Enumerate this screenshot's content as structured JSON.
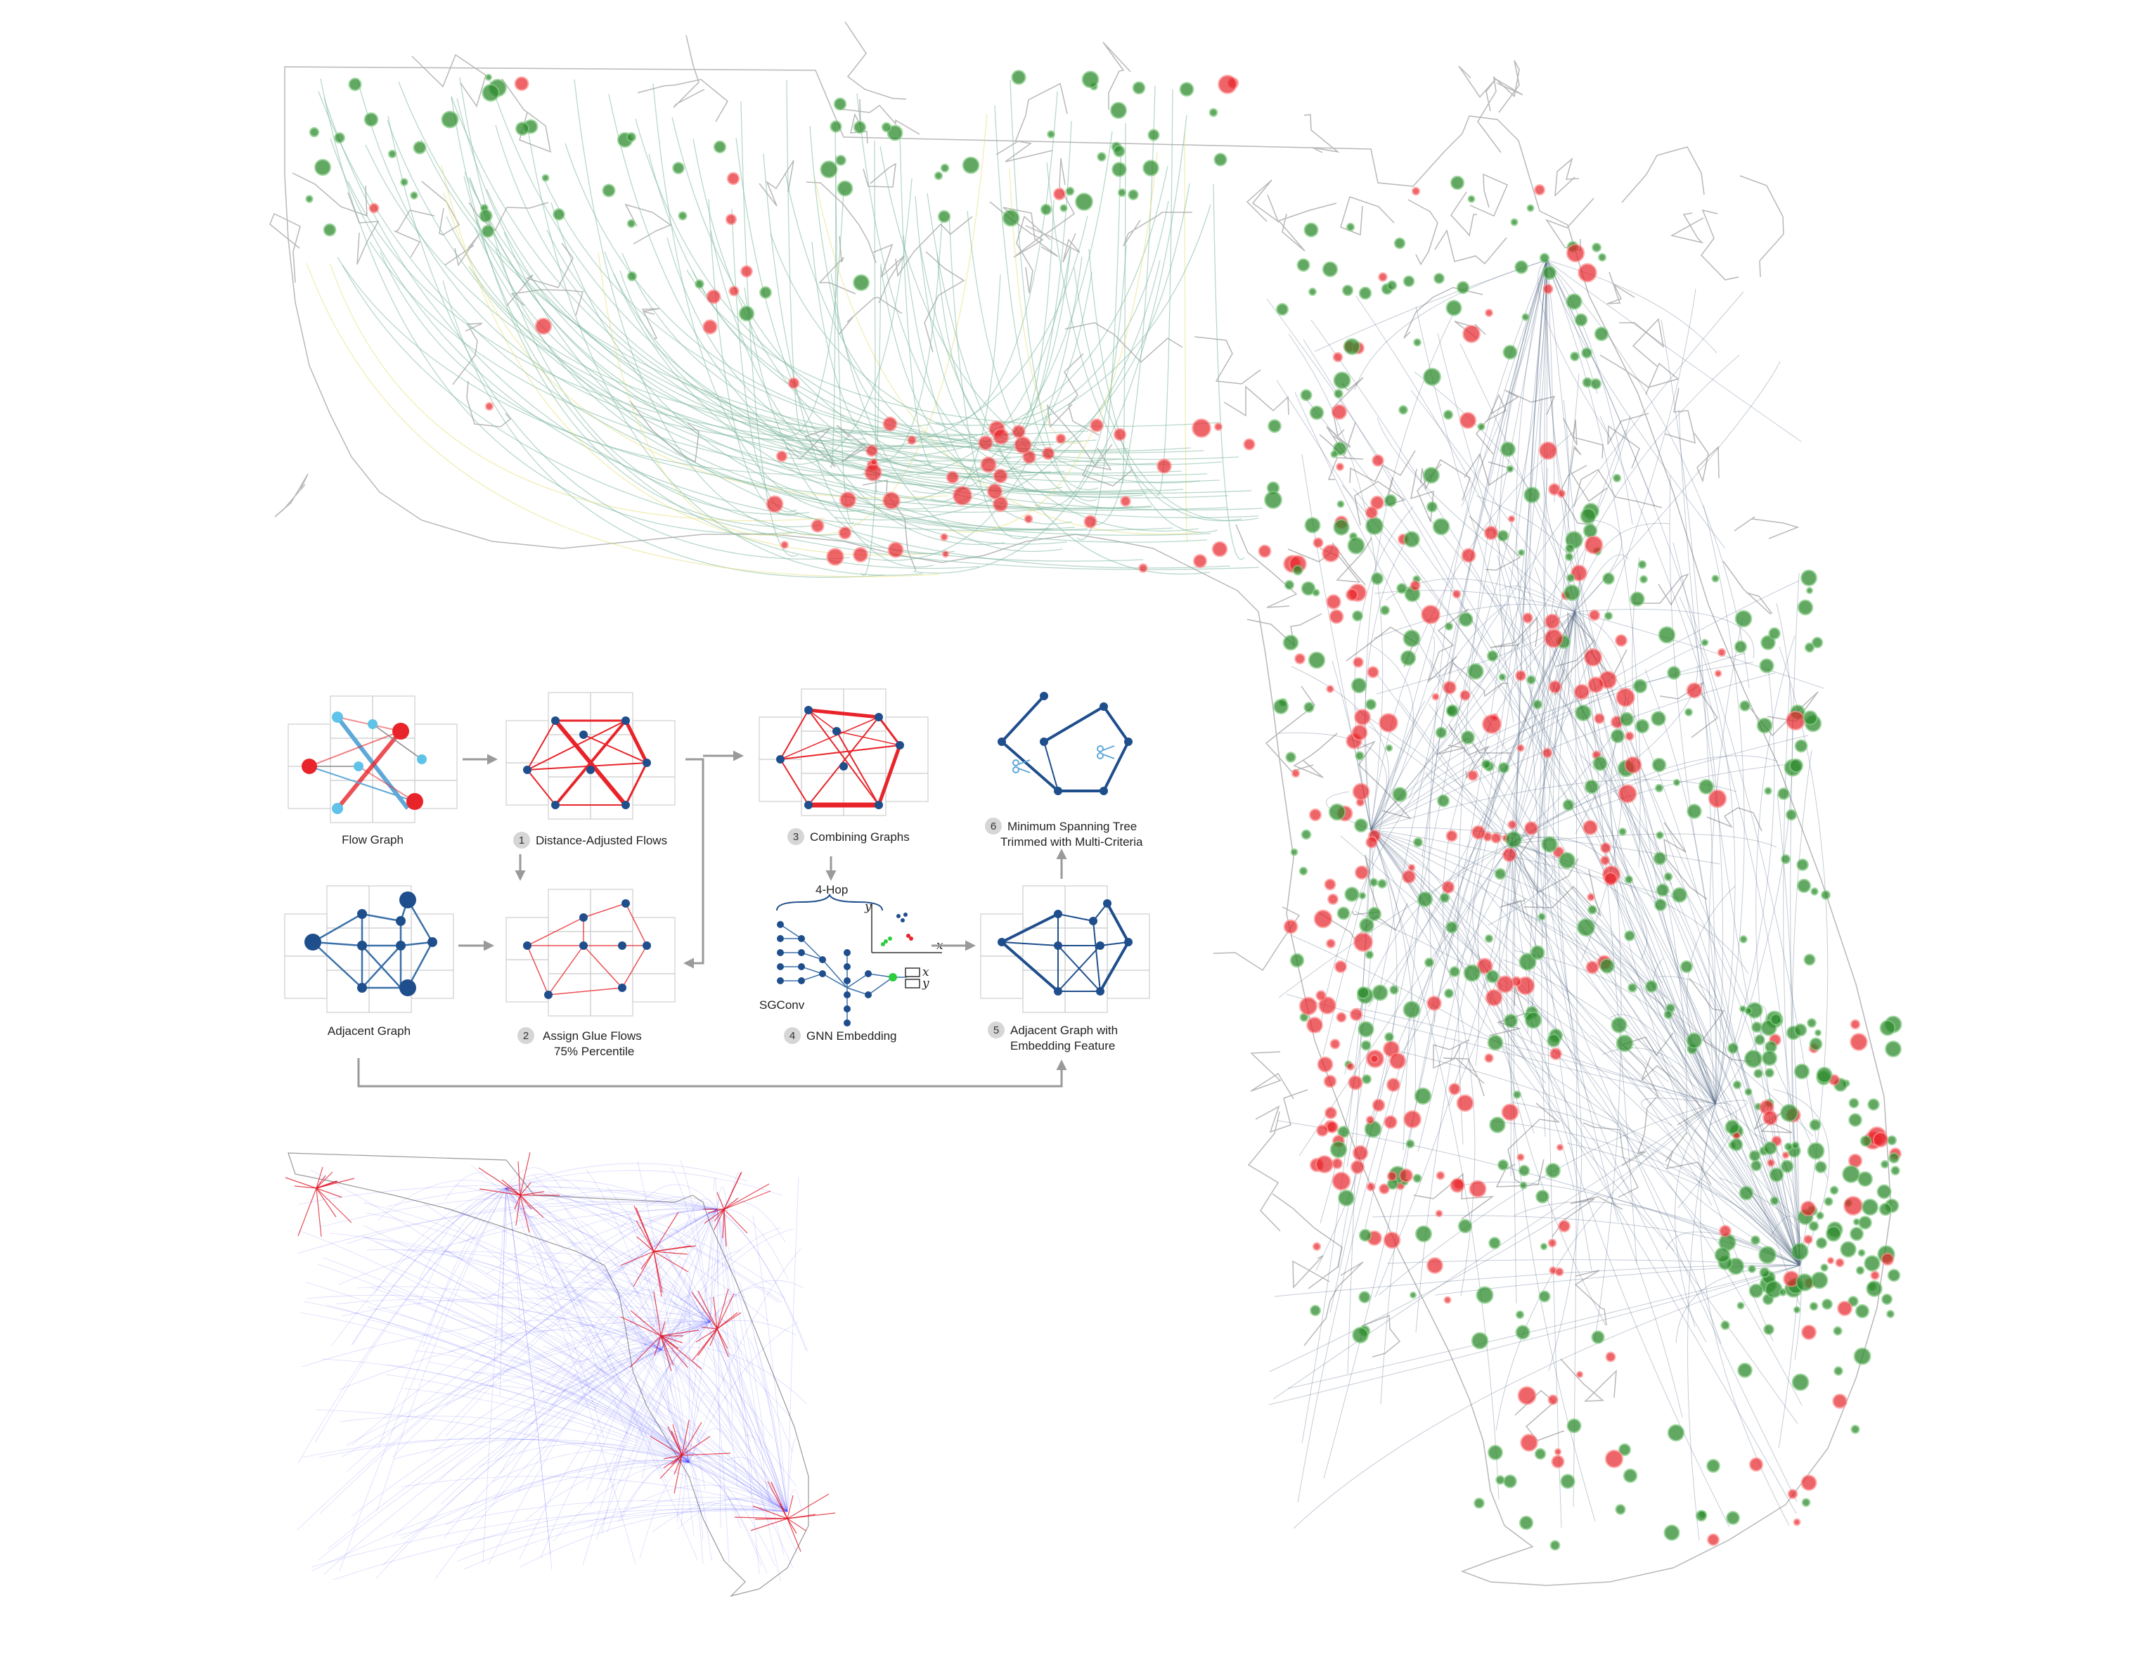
{
  "panels": {
    "flow_graph": {
      "label": "Flow Graph"
    },
    "distance_adjusted": {
      "step": "1",
      "label": "Distance-Adjusted Flows"
    },
    "adjacent_graph": {
      "label": "Adjacent Graph"
    },
    "assign_glue": {
      "step": "2",
      "label_line1": "Assign Glue Flows",
      "label_line2": "75% Percentile"
    },
    "combining": {
      "step": "3",
      "label": "Combining Graphs"
    },
    "gnn": {
      "step": "4",
      "label": "GNN Embedding",
      "hop_label": "4-Hop",
      "sgconv_label": "SGConv",
      "axis_x": "x",
      "axis_y": "y"
    },
    "adjacent_embedding": {
      "step": "5",
      "label_line1": "Adjacent Graph with",
      "label_line2": "Embedding Feature"
    },
    "mst": {
      "step": "6",
      "label_line1": "Minimum Spanning Tree",
      "label_line2": "Trimmed with Multi-Criteria"
    }
  },
  "colors": {
    "red_node": "#e8242a",
    "green_node": "#2e8b2e",
    "blue_node": "#1f4e8c",
    "light_blue_node": "#5fc2e8",
    "flow_line": "#5a6e8a",
    "panhandle_flow": "#7fb8a0",
    "inset_flow": "#3a3aff",
    "inset_red": "#e01020"
  },
  "icons": [
    "scissors-icon",
    "arrow-right-icon",
    "arrow-down-icon",
    "arrow-up-icon"
  ]
}
